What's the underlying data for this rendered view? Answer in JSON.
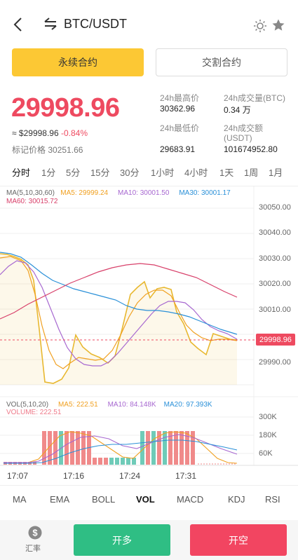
{
  "header": {
    "title": "BTC/USDT",
    "icons": [
      "back-icon",
      "swap-icon",
      "theme-icon",
      "favorite-icon"
    ]
  },
  "contract_tabs": {
    "perpetual": "永续合约",
    "delivery": "交割合约"
  },
  "price": {
    "last": "29998.96",
    "usd_value": "≈ $29998.96",
    "change_pct": "-0.84%",
    "mark_label": "标记价格",
    "mark_value": "30251.66",
    "color": "#ee4a60"
  },
  "stats": {
    "high_label": "24h最高价",
    "high_value": "30362.96",
    "volume_btc_label": "24h成交量(BTC)",
    "volume_btc_value": "0.34 万",
    "low_label": "24h最低价",
    "low_value": "29683.91",
    "turnover_label_1": "24h成交额",
    "turnover_label_2": "(USDT)",
    "turnover_value": "101674952.80"
  },
  "intervals": [
    "分时",
    "1分",
    "5分",
    "15分",
    "30分",
    "1小时",
    "4小时",
    "1天",
    "1周",
    "1月"
  ],
  "main_chart": {
    "legend_title": "MA(5,10,30,60)",
    "ma5": "MA5: 29999.24",
    "ma10": "MA10: 30001.50",
    "ma30": "MA30: 30001.17",
    "ma60": "MA60: 30015.72",
    "y_ticks": [
      "30050.00",
      "30040.00",
      "30030.00",
      "30020.00",
      "30010.00",
      "29990.00"
    ],
    "current_price_tag": "29998.96",
    "colors": {
      "price": "#e8b830",
      "ma5": "#f0a020",
      "ma10": "#a768d0",
      "ma30": "#2a90d8",
      "ma60": "#d8406a"
    }
  },
  "volume_chart": {
    "legend_title": "VOL(5,10,20)",
    "ma5": "MA5: 222.51",
    "ma10": "MA10: 84.148K",
    "ma20": "MA20: 97.393K",
    "volume": "VOLUME: 222.51",
    "y_ticks": [
      "300K",
      "180K",
      "60K"
    ]
  },
  "time_axis": [
    "17:07",
    "17:16",
    "17:24",
    "17:31"
  ],
  "indicators": [
    "MA",
    "EMA",
    "BOLL",
    "VOL",
    "MACD",
    "KDJ",
    "RSI"
  ],
  "bottom": {
    "rate_label": "汇率",
    "long_button": "开多",
    "short_button": "开空"
  }
}
